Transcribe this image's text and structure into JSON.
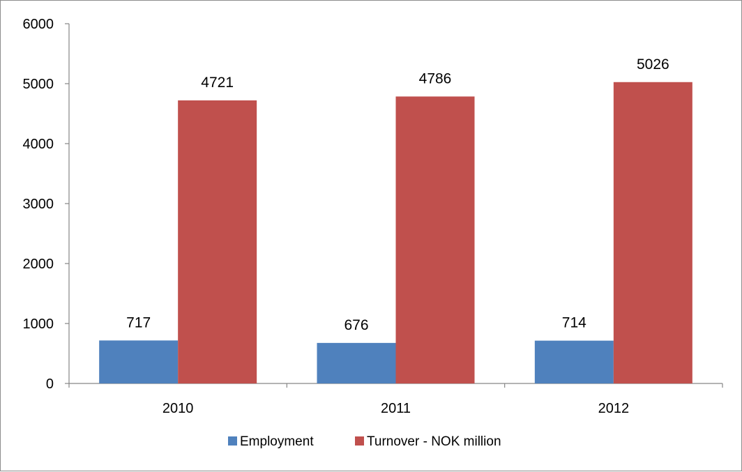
{
  "chart_data": {
    "type": "bar",
    "categories": [
      "2010",
      "2011",
      "2012"
    ],
    "series": [
      {
        "name": "Employment",
        "values": [
          717,
          676,
          714
        ],
        "color": "#4f81bd"
      },
      {
        "name": "Turnover - NOK million",
        "values": [
          4721,
          4786,
          5026
        ],
        "color": "#c0504d"
      }
    ],
    "ylim": [
      0,
      6000
    ],
    "yticks": [
      0,
      1000,
      2000,
      3000,
      4000,
      5000,
      6000
    ],
    "title": "",
    "xlabel": "",
    "ylabel": "",
    "grid": false,
    "legend_position": "bottom",
    "data_labels": true
  }
}
